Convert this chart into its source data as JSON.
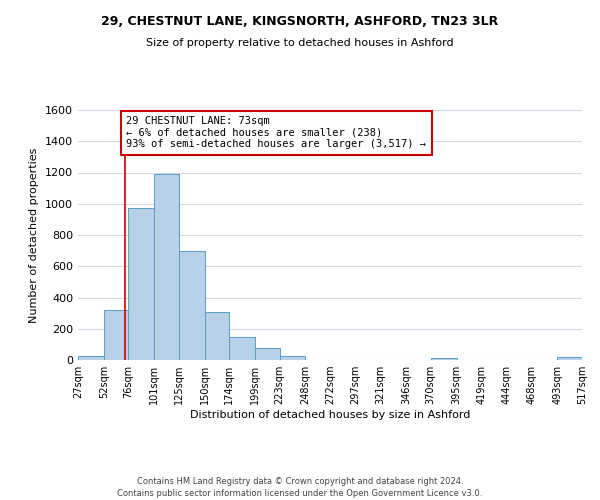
{
  "title_line1": "29, CHESTNUT LANE, KINGSNORTH, ASHFORD, TN23 3LR",
  "title_line2": "Size of property relative to detached houses in Ashford",
  "xlabel": "Distribution of detached houses by size in Ashford",
  "ylabel": "Number of detached properties",
  "bin_edges": [
    27,
    52,
    76,
    101,
    125,
    150,
    174,
    199,
    223,
    248,
    272,
    297,
    321,
    346,
    370,
    395,
    419,
    444,
    468,
    493,
    517
  ],
  "bar_heights": [
    25,
    320,
    970,
    1190,
    700,
    310,
    150,
    75,
    25,
    0,
    0,
    0,
    0,
    0,
    10,
    0,
    0,
    0,
    0,
    20
  ],
  "bar_color": "#b8d0e8",
  "bar_edge_color": "#5a9ec8",
  "property_size": 73,
  "vline_color": "#cc0000",
  "annotation_text": "29 CHESTNUT LANE: 73sqm\n← 6% of detached houses are smaller (238)\n93% of semi-detached houses are larger (3,517) →",
  "annotation_box_color": "#ffffff",
  "annotation_box_edge": "#cc0000",
  "ylim": [
    0,
    1600
  ],
  "yticks": [
    0,
    200,
    400,
    600,
    800,
    1000,
    1200,
    1400,
    1600
  ],
  "tick_labels": [
    "27sqm",
    "52sqm",
    "76sqm",
    "101sqm",
    "125sqm",
    "150sqm",
    "174sqm",
    "199sqm",
    "223sqm",
    "248sqm",
    "272sqm",
    "297sqm",
    "321sqm",
    "346sqm",
    "370sqm",
    "395sqm",
    "419sqm",
    "444sqm",
    "468sqm",
    "493sqm",
    "517sqm"
  ],
  "footer_line1": "Contains HM Land Registry data © Crown copyright and database right 2024.",
  "footer_line2": "Contains public sector information licensed under the Open Government Licence v3.0.",
  "background_color": "#ffffff",
  "plot_bg_color": "#ffffff",
  "grid_color": "#d0d8e8"
}
